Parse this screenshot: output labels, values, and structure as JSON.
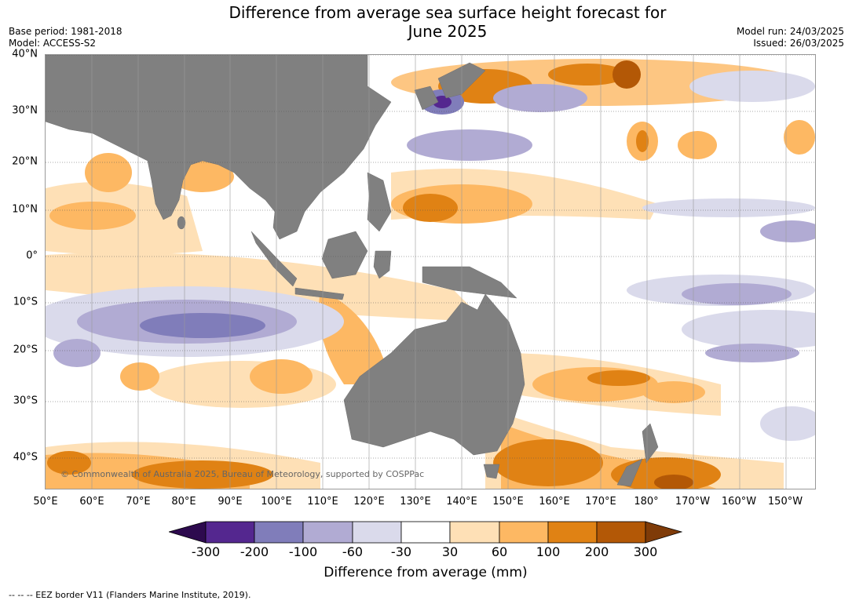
{
  "title_line1": "Difference from average sea surface height forecast for",
  "title_line2": "June 2025",
  "base_period": "Base period: 1981-2018",
  "model": "Model: ACCESS-S2",
  "model_run": "Model run: 24/03/2025",
  "issued": "Issued: 26/03/2025",
  "lat_labels": [
    "40°N",
    "30°N",
    "20°N",
    "10°N",
    "0°",
    "10°S",
    "20°S",
    "30°S",
    "40°S"
  ],
  "lon_labels": [
    "50°E",
    "60°E",
    "70°E",
    "80°E",
    "90°E",
    "100°E",
    "110°E",
    "120°E",
    "130°E",
    "140°E",
    "150°E",
    "160°E",
    "170°E",
    "180°",
    "170°W",
    "160°W",
    "150°W"
  ],
  "copyright": "© Commonwealth of Australia 2025, Bureau of Meteorology, supported by COSPPac",
  "colorbar": {
    "title": "Difference from average (mm)",
    "ticks": [
      "-300",
      "-200",
      "-100",
      "-60",
      "-30",
      "30",
      "60",
      "100",
      "200",
      "300"
    ],
    "colors": [
      "#2d0a4e",
      "#54278f",
      "#807dba",
      "#b1abd3",
      "#dadaeb",
      "#ffffff",
      "#fee0b6",
      "#fdb863",
      "#e08214",
      "#b35806",
      "#7f3b08"
    ]
  },
  "footnote": "--  --  -- EEZ border V11 (Flanders Marine Institute, 2019)."
}
